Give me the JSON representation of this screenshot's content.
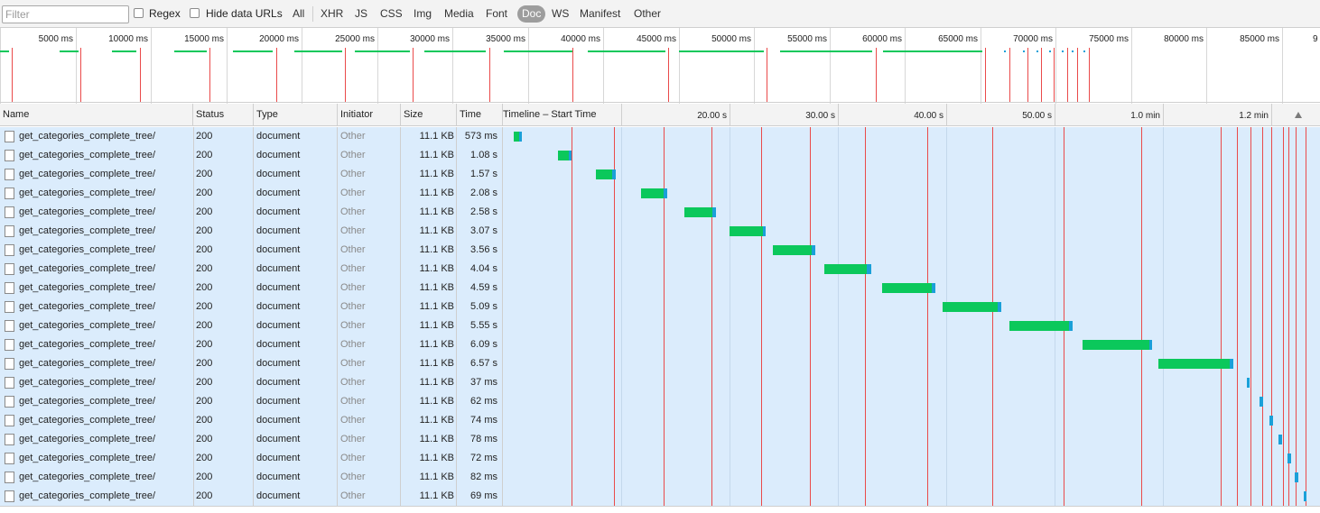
{
  "toolbar": {
    "filter_placeholder": "Filter",
    "regex_label": "Regex",
    "hide_data_urls_label": "Hide data URLs",
    "types": [
      "All",
      "XHR",
      "JS",
      "CSS",
      "Img",
      "Media",
      "Font",
      "Doc",
      "WS",
      "Manifest",
      "Other"
    ],
    "selected_type": "Doc"
  },
  "overview": {
    "ticks": [
      "5000 ms",
      "10000 ms",
      "15000 ms",
      "20000 ms",
      "25000 ms",
      "30000 ms",
      "35000 ms",
      "40000 ms",
      "45000 ms",
      "50000 ms",
      "55000 ms",
      "60000 ms",
      "65000 ms",
      "70000 ms",
      "75000 ms",
      "80000 ms",
      "85000 ms",
      "9"
    ]
  },
  "table": {
    "columns": {
      "name": "Name",
      "status": "Status",
      "type": "Type",
      "initiator": "Initiator",
      "size": "Size",
      "time": "Time",
      "timeline": "Timeline – Start Time"
    },
    "timeline_ticks": [
      "20.00 s",
      "30.00 s",
      "40.00 s",
      "50.00 s",
      "1.0 min",
      "1.2 min"
    ],
    "rows": [
      {
        "name": "get_categories_complete_tree/",
        "status": "200",
        "type": "document",
        "initiator": "Other",
        "size": "11.1 KB",
        "time": "573 ms"
      },
      {
        "name": "get_categories_complete_tree/",
        "status": "200",
        "type": "document",
        "initiator": "Other",
        "size": "11.1 KB",
        "time": "1.08 s"
      },
      {
        "name": "get_categories_complete_tree/",
        "status": "200",
        "type": "document",
        "initiator": "Other",
        "size": "11.1 KB",
        "time": "1.57 s"
      },
      {
        "name": "get_categories_complete_tree/",
        "status": "200",
        "type": "document",
        "initiator": "Other",
        "size": "11.1 KB",
        "time": "2.08 s"
      },
      {
        "name": "get_categories_complete_tree/",
        "status": "200",
        "type": "document",
        "initiator": "Other",
        "size": "11.1 KB",
        "time": "2.58 s"
      },
      {
        "name": "get_categories_complete_tree/",
        "status": "200",
        "type": "document",
        "initiator": "Other",
        "size": "11.1 KB",
        "time": "3.07 s"
      },
      {
        "name": "get_categories_complete_tree/",
        "status": "200",
        "type": "document",
        "initiator": "Other",
        "size": "11.1 KB",
        "time": "3.56 s"
      },
      {
        "name": "get_categories_complete_tree/",
        "status": "200",
        "type": "document",
        "initiator": "Other",
        "size": "11.1 KB",
        "time": "4.04 s"
      },
      {
        "name": "get_categories_complete_tree/",
        "status": "200",
        "type": "document",
        "initiator": "Other",
        "size": "11.1 KB",
        "time": "4.59 s"
      },
      {
        "name": "get_categories_complete_tree/",
        "status": "200",
        "type": "document",
        "initiator": "Other",
        "size": "11.1 KB",
        "time": "5.09 s"
      },
      {
        "name": "get_categories_complete_tree/",
        "status": "200",
        "type": "document",
        "initiator": "Other",
        "size": "11.1 KB",
        "time": "5.55 s"
      },
      {
        "name": "get_categories_complete_tree/",
        "status": "200",
        "type": "document",
        "initiator": "Other",
        "size": "11.1 KB",
        "time": "6.09 s"
      },
      {
        "name": "get_categories_complete_tree/",
        "status": "200",
        "type": "document",
        "initiator": "Other",
        "size": "11.1 KB",
        "time": "6.57 s"
      },
      {
        "name": "get_categories_complete_tree/",
        "status": "200",
        "type": "document",
        "initiator": "Other",
        "size": "11.1 KB",
        "time": "37 ms"
      },
      {
        "name": "get_categories_complete_tree/",
        "status": "200",
        "type": "document",
        "initiator": "Other",
        "size": "11.1 KB",
        "time": "62 ms"
      },
      {
        "name": "get_categories_complete_tree/",
        "status": "200",
        "type": "document",
        "initiator": "Other",
        "size": "11.1 KB",
        "time": "74 ms"
      },
      {
        "name": "get_categories_complete_tree/",
        "status": "200",
        "type": "document",
        "initiator": "Other",
        "size": "11.1 KB",
        "time": "78 ms"
      },
      {
        "name": "get_categories_complete_tree/",
        "status": "200",
        "type": "document",
        "initiator": "Other",
        "size": "11.1 KB",
        "time": "72 ms"
      },
      {
        "name": "get_categories_complete_tree/",
        "status": "200",
        "type": "document",
        "initiator": "Other",
        "size": "11.1 KB",
        "time": "82 ms"
      },
      {
        "name": "get_categories_complete_tree/",
        "status": "200",
        "type": "document",
        "initiator": "Other",
        "size": "11.1 KB",
        "time": "69 ms"
      }
    ]
  },
  "colors": {
    "waiting": "#0bc85b",
    "download": "#1aa0d8",
    "load_marker": "#ea4a4a",
    "row_background": "#dbecfc",
    "selected_type_pill": "#9d9d9d"
  }
}
